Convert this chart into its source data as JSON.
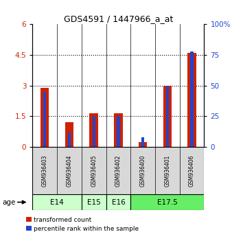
{
  "title": "GDS4591 / 1447966_a_at",
  "samples": [
    "GSM936403",
    "GSM936404",
    "GSM936405",
    "GSM936402",
    "GSM936400",
    "GSM936401",
    "GSM936406"
  ],
  "transformed_counts": [
    2.9,
    1.2,
    1.65,
    1.65,
    0.25,
    3.0,
    4.6
  ],
  "percentile_ranks": [
    45,
    12,
    25,
    25,
    8,
    50,
    78
  ],
  "age_groups": [
    {
      "label": "E14",
      "samples": [
        0,
        1
      ],
      "color": "#ccffcc"
    },
    {
      "label": "E15",
      "samples": [
        2
      ],
      "color": "#ccffcc"
    },
    {
      "label": "E16",
      "samples": [
        3
      ],
      "color": "#ccffcc"
    },
    {
      "label": "E17.5",
      "samples": [
        4,
        5,
        6
      ],
      "color": "#66ee66"
    }
  ],
  "ylim_left": [
    0,
    6
  ],
  "ylim_right": [
    0,
    100
  ],
  "yticks_left": [
    0,
    1.5,
    3.0,
    4.5,
    6.0
  ],
  "ytick_labels_left": [
    "0",
    "1.5",
    "3",
    "4.5",
    "6"
  ],
  "yticks_right": [
    0,
    25,
    50,
    75,
    100
  ],
  "ytick_labels_right": [
    "0",
    "25",
    "50",
    "75",
    "100%"
  ],
  "bar_color_red": "#cc2200",
  "bar_color_blue": "#2244cc",
  "bg_color": "#d8d8d8",
  "legend_red": "transformed count",
  "legend_blue": "percentile rank within the sample",
  "red_bar_width": 0.35,
  "blue_bar_width": 0.12
}
